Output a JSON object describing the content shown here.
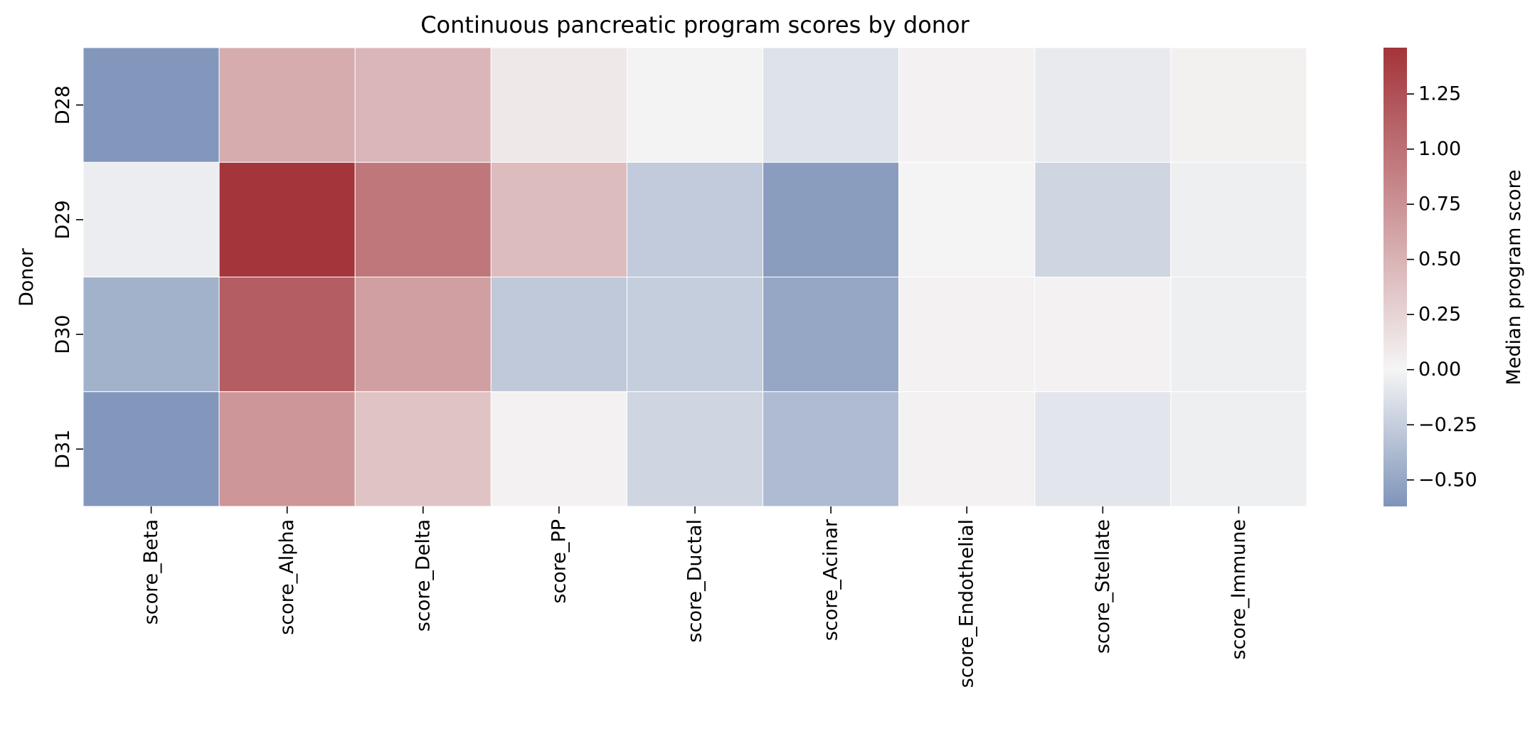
{
  "chart_data": {
    "type": "heatmap",
    "title": "Continuous pancreatic program scores by donor",
    "xlabel": "",
    "ylabel": "Donor",
    "x_categories": [
      "score_Beta",
      "score_Alpha",
      "score_Delta",
      "score_PP",
      "score_Ductal",
      "score_Acinar",
      "score_Endothelial",
      "score_Stellate",
      "score_Immune"
    ],
    "y_categories": [
      "D28",
      "D29",
      "D30",
      "D31"
    ],
    "values": [
      [
        -0.6,
        0.55,
        0.48,
        0.1,
        -0.01,
        -0.12,
        0.03,
        -0.07,
        0.04
      ],
      [
        -0.05,
        1.45,
        0.95,
        0.43,
        -0.27,
        -0.56,
        0.01,
        -0.2,
        -0.04
      ],
      [
        -0.43,
        1.15,
        0.65,
        -0.28,
        -0.25,
        -0.5,
        0.03,
        0.03,
        -0.04
      ],
      [
        -0.6,
        0.72,
        0.38,
        0.03,
        -0.2,
        -0.37,
        0.03,
        -0.1,
        -0.04
      ]
    ],
    "colorbar": {
      "label": "Median program score",
      "vmin": -0.62,
      "vmax": 1.46,
      "ticks": [
        -0.5,
        -0.25,
        0.0,
        0.25,
        0.5,
        0.75,
        1.0,
        1.25
      ],
      "tick_labels": [
        "−0.50",
        "−0.25",
        "0.00",
        "0.25",
        "0.50",
        "0.75",
        "1.00",
        "1.25"
      ],
      "colormap": "diverging blue-white-red",
      "colors": {
        "low": "#7e94b9",
        "mid": "#f5f5f5",
        "high": "#a3343a"
      }
    },
    "grid": false,
    "cell_border_color": "#ffffff"
  }
}
